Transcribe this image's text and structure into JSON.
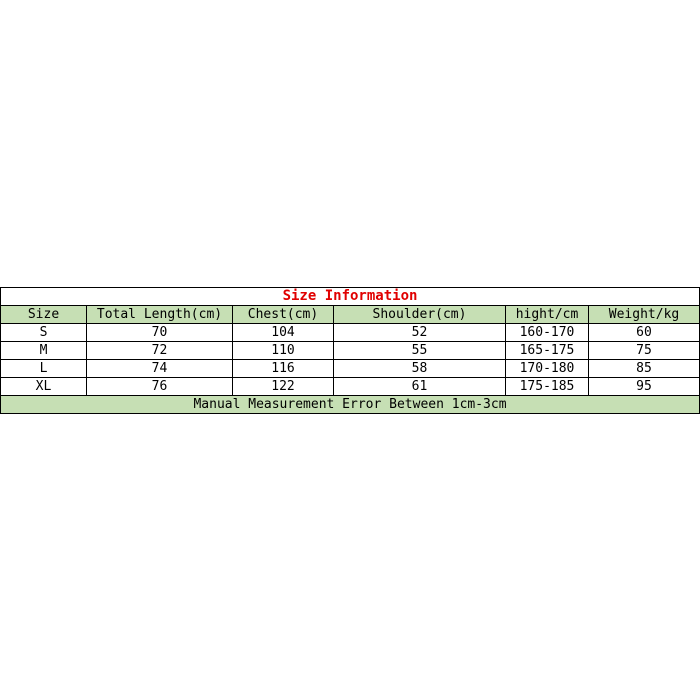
{
  "title": "Size Information",
  "headers": [
    "Size",
    "Total Length(cm)",
    "Chest(cm)",
    "Shoulder(cm)",
    "hight/cm",
    "Weight/kg"
  ],
  "rows": [
    [
      "S",
      "70",
      "104",
      "52",
      "160-170",
      "60"
    ],
    [
      "M",
      "72",
      "110",
      "55",
      "165-175",
      "75"
    ],
    [
      "L",
      "74",
      "116",
      "58",
      "170-180",
      "85"
    ],
    [
      "XL",
      "76",
      "122",
      "61",
      "175-185",
      "95"
    ]
  ],
  "footer": "Manual Measurement Error Between 1cm-3cm",
  "colors": {
    "title": "#e00000",
    "header_bg": "#c6dfb4"
  }
}
